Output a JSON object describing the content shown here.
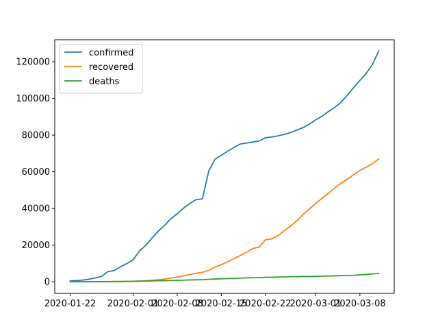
{
  "chart_data": {
    "type": "line",
    "title": "",
    "xlabel": "",
    "ylabel": "",
    "x": [
      "2020-01-22",
      "2020-01-23",
      "2020-01-24",
      "2020-01-25",
      "2020-01-26",
      "2020-01-27",
      "2020-01-28",
      "2020-01-29",
      "2020-01-30",
      "2020-01-31",
      "2020-02-01",
      "2020-02-02",
      "2020-02-03",
      "2020-02-04",
      "2020-02-05",
      "2020-02-06",
      "2020-02-07",
      "2020-02-08",
      "2020-02-09",
      "2020-02-10",
      "2020-02-11",
      "2020-02-12",
      "2020-02-13",
      "2020-02-14",
      "2020-02-15",
      "2020-02-16",
      "2020-02-17",
      "2020-02-18",
      "2020-02-19",
      "2020-02-20",
      "2020-02-21",
      "2020-02-22",
      "2020-02-23",
      "2020-02-24",
      "2020-02-25",
      "2020-02-26",
      "2020-02-27",
      "2020-02-28",
      "2020-02-29",
      "2020-03-01",
      "2020-03-02",
      "2020-03-03",
      "2020-03-04",
      "2020-03-05",
      "2020-03-06",
      "2020-03-07",
      "2020-03-08",
      "2020-03-09",
      "2020-03-10",
      "2020-03-11"
    ],
    "x_ticks": [
      "2020-01-22",
      "2020-02-01",
      "2020-02-08",
      "2020-02-15",
      "2020-02-22",
      "2020-03-01",
      "2020-03-08"
    ],
    "y_ticks": [
      0,
      20000,
      40000,
      60000,
      80000,
      100000,
      120000
    ],
    "ylim": [
      -6300,
      132000
    ],
    "legend_position": "upper-left",
    "grid": false,
    "series": [
      {
        "name": "confirmed",
        "color": "#1f77b4",
        "values": [
          555,
          653,
          941,
          1434,
          2118,
          2927,
          5578,
          6166,
          8234,
          9927,
          12038,
          16787,
          19881,
          23892,
          27635,
          30794,
          34391,
          37120,
          40150,
          42762,
          44802,
          45221,
          60368,
          66885,
          69030,
          71224,
          73258,
          75136,
          75639,
          76197,
          76819,
          78572,
          78958,
          79561,
          80406,
          81388,
          82746,
          84112,
          86011,
          88369,
          90306,
          92840,
          95120,
          97886,
          101800,
          105836,
          109835,
          113582,
          118582,
          125865
        ]
      },
      {
        "name": "recovered",
        "color": "#ff7f0e",
        "values": [
          28,
          30,
          36,
          39,
          52,
          61,
          107,
          126,
          143,
          222,
          284,
          472,
          623,
          852,
          1124,
          1487,
          2011,
          2616,
          3244,
          3946,
          4683,
          5150,
          6295,
          8058,
          9395,
          10865,
          12583,
          14352,
          16121,
          18177,
          18890,
          22886,
          23394,
          25227,
          27905,
          30384,
          33277,
          36711,
          39782,
          42716,
          45602,
          48228,
          51170,
          53797,
          55866,
          58359,
          60694,
          62494,
          64404,
          67003
        ]
      },
      {
        "name": "deaths",
        "color": "#2ca02c",
        "values": [
          17,
          18,
          26,
          42,
          56,
          82,
          131,
          133,
          171,
          213,
          259,
          362,
          426,
          492,
          564,
          634,
          719,
          806,
          906,
          1013,
          1113,
          1118,
          1371,
          1523,
          1666,
          1770,
          1868,
          2007,
          2122,
          2247,
          2251,
          2458,
          2469,
          2629,
          2708,
          2770,
          2814,
          2872,
          2941,
          2996,
          3085,
          3160,
          3254,
          3348,
          3460,
          3558,
          3803,
          3996,
          4262,
          4615
        ]
      }
    ]
  }
}
